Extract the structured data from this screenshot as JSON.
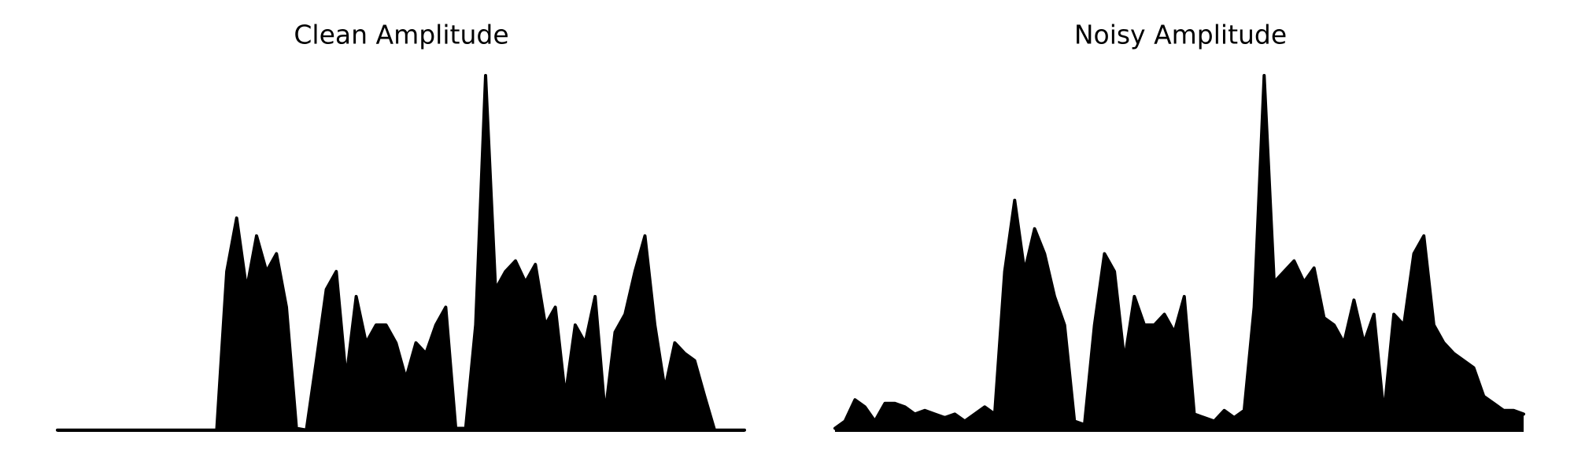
{
  "chart_data": [
    {
      "type": "area",
      "title": "Clean Amplitude",
      "color": "#000000",
      "ylim": [
        0,
        1
      ],
      "values": [
        0.005,
        0.005,
        0.005,
        0.005,
        0.005,
        0.005,
        0.005,
        0.005,
        0.005,
        0.005,
        0.005,
        0.005,
        0.005,
        0.005,
        0.005,
        0.005,
        0.005,
        0.45,
        0.6,
        0.4,
        0.55,
        0.45,
        0.5,
        0.35,
        0.01,
        0.005,
        0.2,
        0.4,
        0.45,
        0.15,
        0.38,
        0.25,
        0.3,
        0.3,
        0.25,
        0.15,
        0.25,
        0.22,
        0.3,
        0.35,
        0.01,
        0.01,
        0.3,
        1.0,
        0.4,
        0.45,
        0.48,
        0.42,
        0.47,
        0.3,
        0.35,
        0.1,
        0.3,
        0.25,
        0.38,
        0.05,
        0.28,
        0.33,
        0.45,
        0.55,
        0.3,
        0.12,
        0.25,
        0.22,
        0.2,
        0.1,
        0.005,
        0.005,
        0.005,
        0.005
      ]
    },
    {
      "type": "area",
      "title": "Noisy Amplitude",
      "color": "#000000",
      "ylim": [
        0,
        1
      ],
      "values": [
        0.01,
        0.03,
        0.09,
        0.07,
        0.03,
        0.08,
        0.08,
        0.07,
        0.05,
        0.06,
        0.05,
        0.04,
        0.05,
        0.03,
        0.05,
        0.07,
        0.05,
        0.45,
        0.65,
        0.45,
        0.57,
        0.5,
        0.38,
        0.3,
        0.03,
        0.02,
        0.3,
        0.5,
        0.45,
        0.2,
        0.38,
        0.3,
        0.3,
        0.33,
        0.28,
        0.38,
        0.05,
        0.04,
        0.03,
        0.06,
        0.04,
        0.06,
        0.35,
        1.0,
        0.42,
        0.45,
        0.48,
        0.42,
        0.46,
        0.32,
        0.3,
        0.25,
        0.37,
        0.25,
        0.33,
        0.05,
        0.33,
        0.3,
        0.5,
        0.55,
        0.3,
        0.25,
        0.22,
        0.2,
        0.18,
        0.1,
        0.08,
        0.06,
        0.06,
        0.05
      ]
    }
  ]
}
